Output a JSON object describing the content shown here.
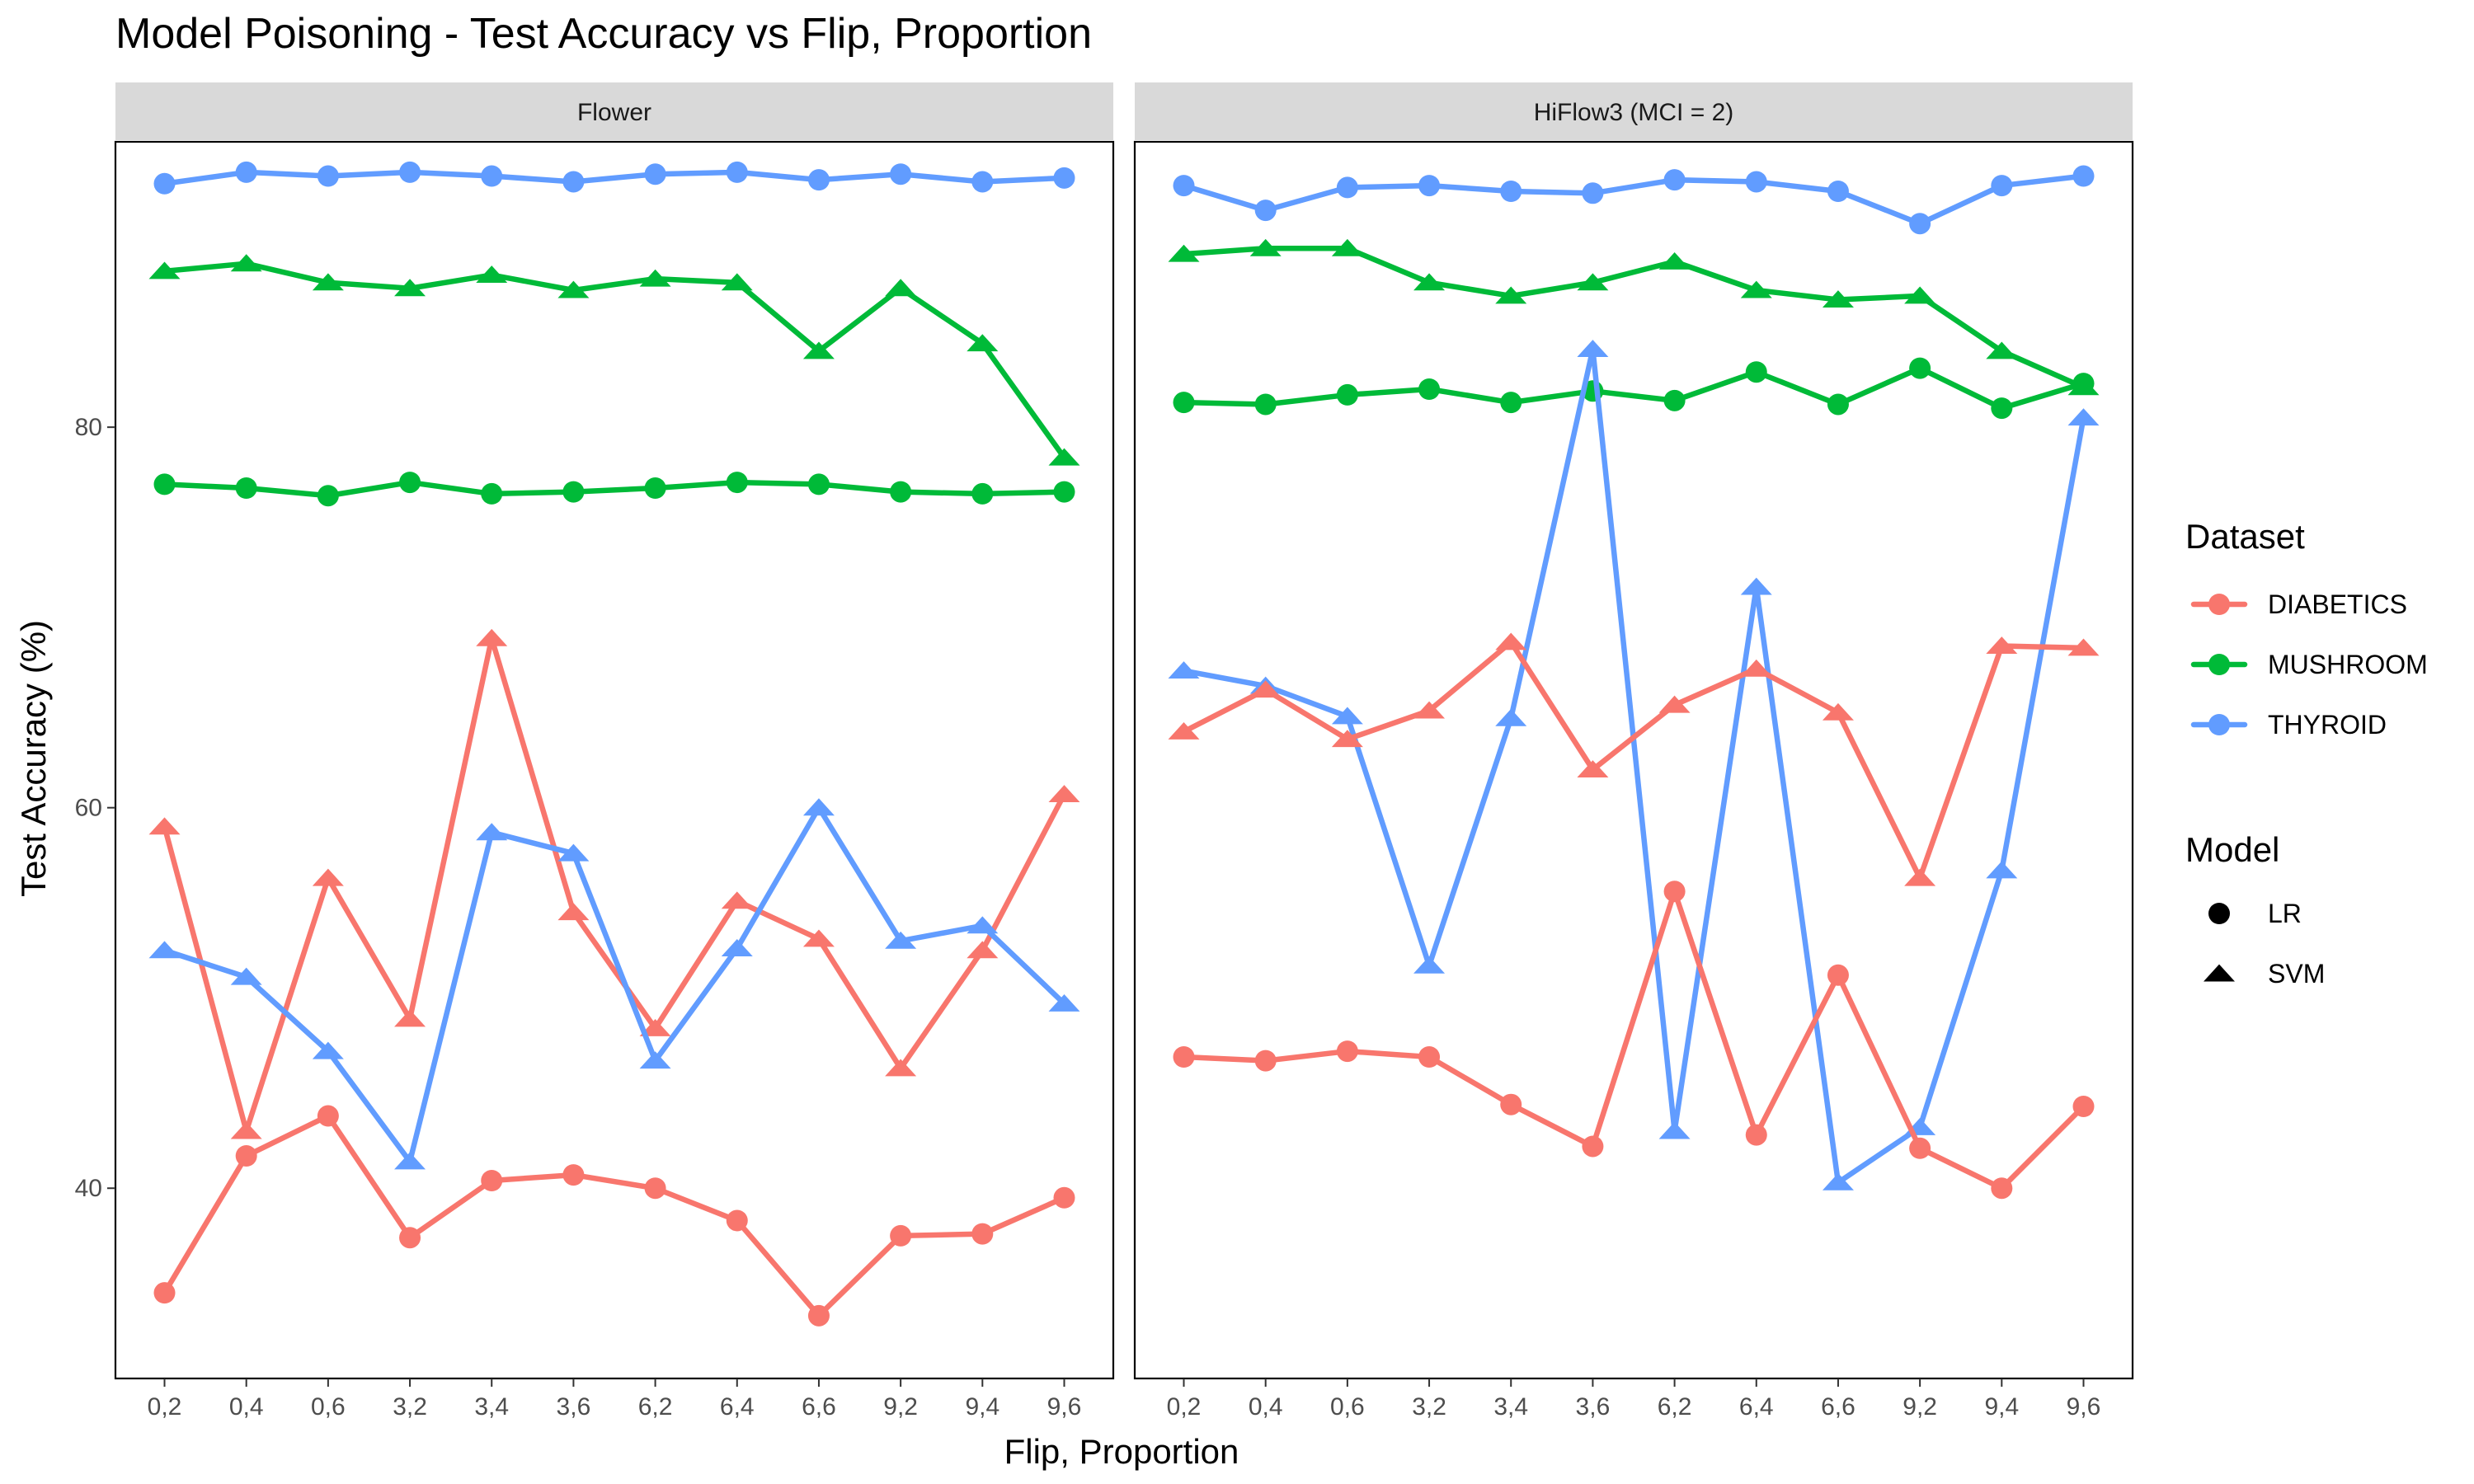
{
  "chart_data": {
    "type": "line",
    "title": "Model Poisoning - Test Accuracy vs Flip, Proportion",
    "xlabel": "Flip, Proportion",
    "ylabel": "Test Accuracy (%)",
    "categories": [
      "0,2",
      "0,4",
      "0,6",
      "3,2",
      "3,4",
      "3,6",
      "6,2",
      "6,4",
      "6,6",
      "9,2",
      "9,4",
      "9,6"
    ],
    "ylim": [
      30,
      95
    ],
    "yticks": [
      40,
      60,
      80
    ],
    "grid": false,
    "legend_placement": "right",
    "colors": {
      "DIABETICS": "#F8766D",
      "MUSHROOM": "#00BA38",
      "THYROID": "#619CFF"
    },
    "legends": {
      "dataset_title": "Dataset",
      "datasets": [
        "DIABETICS",
        "MUSHROOM",
        "THYROID"
      ],
      "model_title": "Model",
      "models": [
        {
          "label": "LR",
          "shape": "circle"
        },
        {
          "label": "SVM",
          "shape": "triangle"
        }
      ]
    },
    "panels": [
      {
        "label": "Flower",
        "series": [
          {
            "dataset": "THYROID",
            "model": "LR",
            "values": [
              92.8,
              93.4,
              93.2,
              93.4,
              93.2,
              92.9,
              93.3,
              93.4,
              93.0,
              93.3,
              92.9,
              93.1
            ]
          },
          {
            "dataset": "MUSHROOM",
            "model": "SVM",
            "values": [
              88.2,
              88.6,
              87.6,
              87.3,
              88.0,
              87.2,
              87.8,
              87.6,
              84.0,
              87.3,
              84.4,
              78.4
            ]
          },
          {
            "dataset": "MUSHROOM",
            "model": "LR",
            "values": [
              77.0,
              76.8,
              76.4,
              77.1,
              76.5,
              76.6,
              76.8,
              77.1,
              77.0,
              76.6,
              76.5,
              76.6
            ]
          },
          {
            "dataset": "DIABETICS",
            "model": "SVM",
            "values": [
              59.0,
              43.0,
              56.3,
              48.9,
              68.9,
              54.5,
              48.4,
              55.1,
              53.1,
              46.3,
              52.5,
              60.7
            ]
          },
          {
            "dataset": "THYROID",
            "model": "SVM",
            "values": [
              52.5,
              51.1,
              47.2,
              41.4,
              58.7,
              57.6,
              46.7,
              52.6,
              60.0,
              53.0,
              53.8,
              49.7
            ]
          },
          {
            "dataset": "DIABETICS",
            "model": "LR",
            "values": [
              34.5,
              41.7,
              43.8,
              37.4,
              40.4,
              40.7,
              40.0,
              38.3,
              33.3,
              37.5,
              37.6,
              39.5
            ]
          }
        ]
      },
      {
        "label": "HiFlow3 (MCI = 2)",
        "series": [
          {
            "dataset": "THYROID",
            "model": "LR",
            "values": [
              92.7,
              91.4,
              92.6,
              92.7,
              92.4,
              92.3,
              93.0,
              92.9,
              92.4,
              90.7,
              92.7,
              93.2
            ]
          },
          {
            "dataset": "MUSHROOM",
            "model": "SVM",
            "values": [
              89.1,
              89.4,
              89.4,
              87.6,
              86.9,
              87.6,
              88.7,
              87.2,
              86.7,
              86.9,
              84.0,
              82.1
            ]
          },
          {
            "dataset": "MUSHROOM",
            "model": "LR",
            "values": [
              81.3,
              81.2,
              81.7,
              82.0,
              81.3,
              81.9,
              81.4,
              82.9,
              81.2,
              83.1,
              81.0,
              82.3
            ]
          },
          {
            "dataset": "THYROID",
            "model": "SVM",
            "values": [
              67.2,
              66.4,
              64.8,
              51.7,
              64.7,
              84.1,
              43.0,
              71.6,
              40.3,
              43.2,
              56.7,
              80.5
            ]
          },
          {
            "dataset": "DIABETICS",
            "model": "SVM",
            "values": [
              64.0,
              66.2,
              63.6,
              65.1,
              68.7,
              62.0,
              65.4,
              67.3,
              65.0,
              56.3,
              68.5,
              68.4
            ]
          },
          {
            "dataset": "DIABETICS",
            "model": "LR",
            "values": [
              46.9,
              46.7,
              47.2,
              46.9,
              44.4,
              42.2,
              55.6,
              42.8,
              51.2,
              42.1,
              40.0,
              44.3
            ]
          }
        ]
      }
    ]
  }
}
